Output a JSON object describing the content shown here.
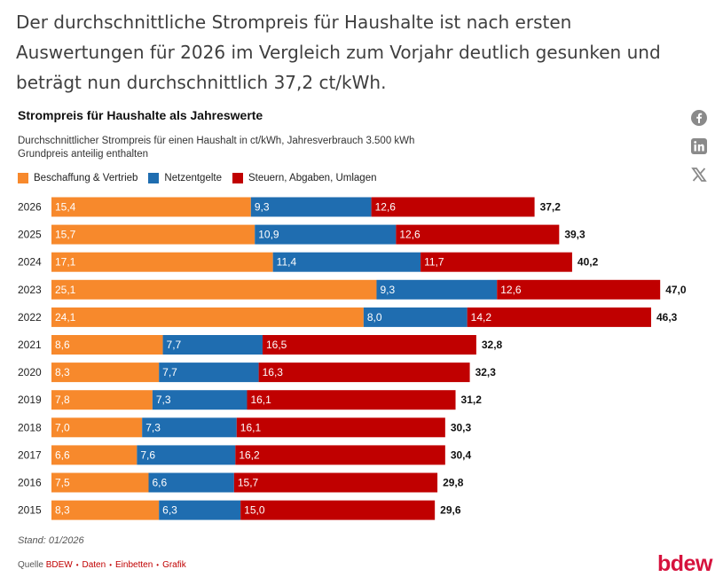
{
  "headline": "Der durchschnittliche Strompreis für Haushalte ist nach ersten Auswertungen für 2026 im Vergleich zum Vorjahr deutlich gesunken und beträgt nun durchschnittlich 37,2 ct/kWh.",
  "share_icons": [
    "facebook-icon",
    "linkedin-icon",
    "x-icon"
  ],
  "footer": {
    "stand": "Stand: 01/2026",
    "quelle_label": "Quelle",
    "quelle": "BDEW",
    "links": [
      "Daten",
      "Einbetten",
      "Grafik"
    ],
    "logo": "bdew"
  },
  "colors": {
    "beschaffung": "#f7892c",
    "netz": "#1f6db0",
    "steuern": "#c00000",
    "logo": "#d6123d"
  },
  "chart_data": {
    "type": "bar",
    "orientation": "horizontal",
    "stacked": true,
    "title": "Strompreis für Haushalte als Jahreswerte",
    "subtitle_line1": "Durchschnittlicher Strompreis für einen Haushalt in ct/kWh, Jahresverbrauch 3.500 kWh",
    "subtitle_line2": "Grundpreis anteilig enthalten",
    "legend": [
      "Beschaffung & Vertrieb",
      "Netzentgelte",
      "Steuern, Abgaben, Umlagen"
    ],
    "categories": [
      "2026",
      "2025",
      "2024",
      "2023",
      "2022",
      "2021",
      "2020",
      "2019",
      "2018",
      "2017",
      "2016",
      "2015"
    ],
    "series": [
      {
        "name": "Beschaffung & Vertrieb",
        "values": [
          15.4,
          15.7,
          17.1,
          25.1,
          24.1,
          8.6,
          8.3,
          7.8,
          7.0,
          6.6,
          7.5,
          8.3
        ]
      },
      {
        "name": "Netzentgelte",
        "values": [
          9.3,
          10.9,
          11.4,
          9.3,
          8.0,
          7.7,
          7.7,
          7.3,
          7.3,
          7.6,
          6.6,
          6.3
        ]
      },
      {
        "name": "Steuern, Abgaben, Umlagen",
        "values": [
          12.6,
          12.6,
          11.7,
          12.6,
          14.2,
          16.5,
          16.3,
          16.1,
          16.1,
          16.2,
          15.7,
          15.0
        ]
      }
    ],
    "totals": [
      37.2,
      39.3,
      40.2,
      47.0,
      46.3,
      32.8,
      32.3,
      31.2,
      30.3,
      30.4,
      29.8,
      29.6
    ],
    "xlim": [
      0,
      47
    ],
    "grid": false,
    "legend_position": "top-left",
    "decimal_separator": ","
  }
}
